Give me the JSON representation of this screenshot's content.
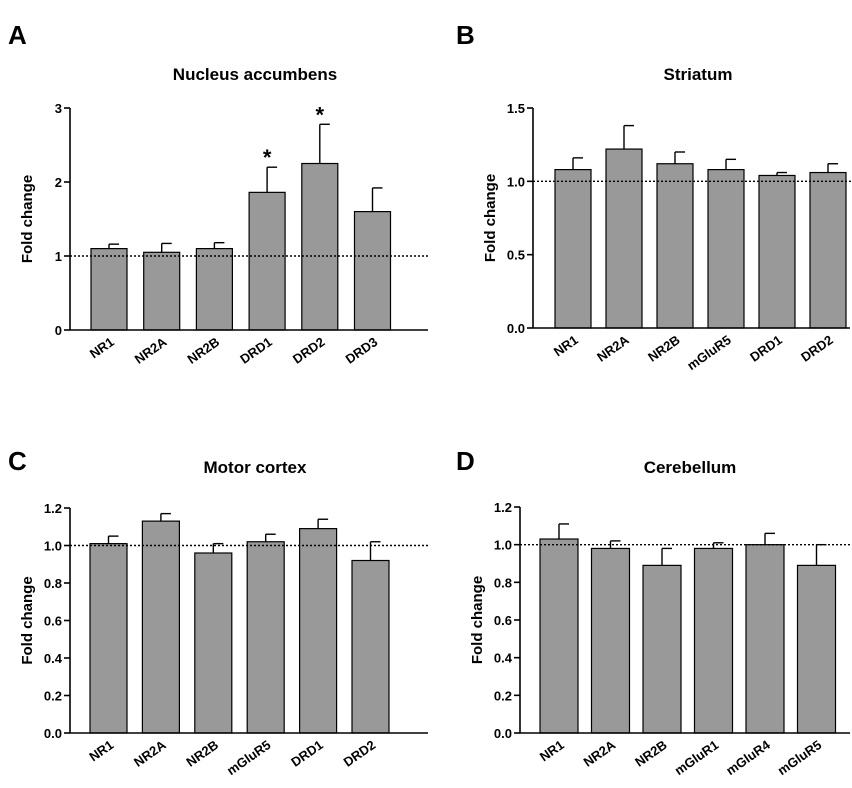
{
  "chart_data": [
    {
      "type": "bar",
      "panel": "A",
      "title": "Nucleus accumbens",
      "ylabel": "Fold change",
      "ylim": [
        0,
        3
      ],
      "yticks": [
        "0",
        "1",
        "2",
        "3"
      ],
      "ytick_values": [
        0,
        1,
        2,
        3
      ],
      "reference_line": 1,
      "categories": [
        "NR1",
        "NR2A",
        "NR2B",
        "DRD1",
        "DRD2",
        "DRD3"
      ],
      "values": [
        1.1,
        1.05,
        1.1,
        1.86,
        2.25,
        1.6
      ],
      "errors": [
        0.06,
        0.12,
        0.08,
        0.34,
        0.53,
        0.32
      ],
      "significance": [
        "",
        "",
        "",
        "*",
        "*",
        ""
      ]
    },
    {
      "type": "bar",
      "panel": "B",
      "title": "Striatum",
      "ylabel": "Fold change",
      "ylim": [
        0,
        1.5
      ],
      "yticks": [
        "0.0",
        "0.5",
        "1.0",
        "1.5"
      ],
      "ytick_values": [
        0,
        0.5,
        1.0,
        1.5
      ],
      "reference_line": 1,
      "categories": [
        "NR1",
        "NR2A",
        "NR2B",
        "mGluR5",
        "DRD1",
        "DRD2"
      ],
      "values": [
        1.08,
        1.22,
        1.12,
        1.08,
        1.04,
        1.06
      ],
      "errors": [
        0.08,
        0.16,
        0.08,
        0.07,
        0.02,
        0.06
      ],
      "significance": [
        "",
        "",
        "",
        "",
        "",
        ""
      ]
    },
    {
      "type": "bar",
      "panel": "C",
      "title": "Motor cortex",
      "ylabel": "Fold change",
      "ylim": [
        0,
        1.2
      ],
      "yticks": [
        "0.0",
        "0.2",
        "0.4",
        "0.6",
        "0.8",
        "1.0",
        "1.2"
      ],
      "ytick_values": [
        0,
        0.2,
        0.4,
        0.6,
        0.8,
        1.0,
        1.2
      ],
      "reference_line": 1,
      "categories": [
        "NR1",
        "NR2A",
        "NR2B",
        "mGluR5",
        "DRD1",
        "DRD2"
      ],
      "values": [
        1.01,
        1.13,
        0.96,
        1.02,
        1.09,
        0.92
      ],
      "errors": [
        0.04,
        0.04,
        0.05,
        0.04,
        0.05,
        0.1
      ],
      "significance": [
        "",
        "",
        "",
        "",
        "",
        ""
      ]
    },
    {
      "type": "bar",
      "panel": "D",
      "title": "Cerebellum",
      "ylabel": "Fold change",
      "ylim": [
        0,
        1.2
      ],
      "yticks": [
        "0.0",
        "0.2",
        "0.4",
        "0.6",
        "0.8",
        "1.0",
        "1.2"
      ],
      "ytick_values": [
        0,
        0.2,
        0.4,
        0.6,
        0.8,
        1.0,
        1.2
      ],
      "reference_line": 1,
      "categories": [
        "NR1",
        "NR2A",
        "NR2B",
        "mGluR1",
        "mGluR4",
        "mGluR5"
      ],
      "values": [
        1.03,
        0.98,
        0.89,
        0.98,
        1.0,
        0.89
      ],
      "errors": [
        0.08,
        0.04,
        0.09,
        0.03,
        0.06,
        0.11
      ],
      "significance": [
        "",
        "",
        "",
        "",
        "",
        ""
      ]
    }
  ]
}
